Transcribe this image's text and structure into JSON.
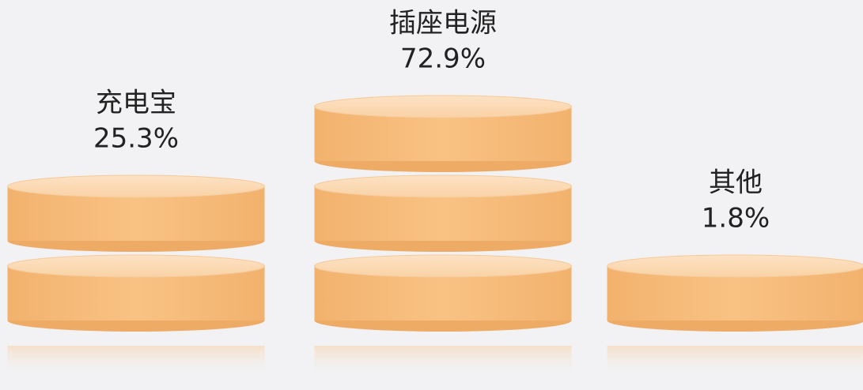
{
  "chart_data": {
    "type": "disc-stack",
    "categories": [
      "充电宝",
      "插座电源",
      "其他"
    ],
    "values": [
      25.3,
      72.9,
      1.8
    ],
    "value_labels": [
      "25.3%",
      "72.9%",
      "1.8%"
    ],
    "color": "#f8c07f"
  }
}
